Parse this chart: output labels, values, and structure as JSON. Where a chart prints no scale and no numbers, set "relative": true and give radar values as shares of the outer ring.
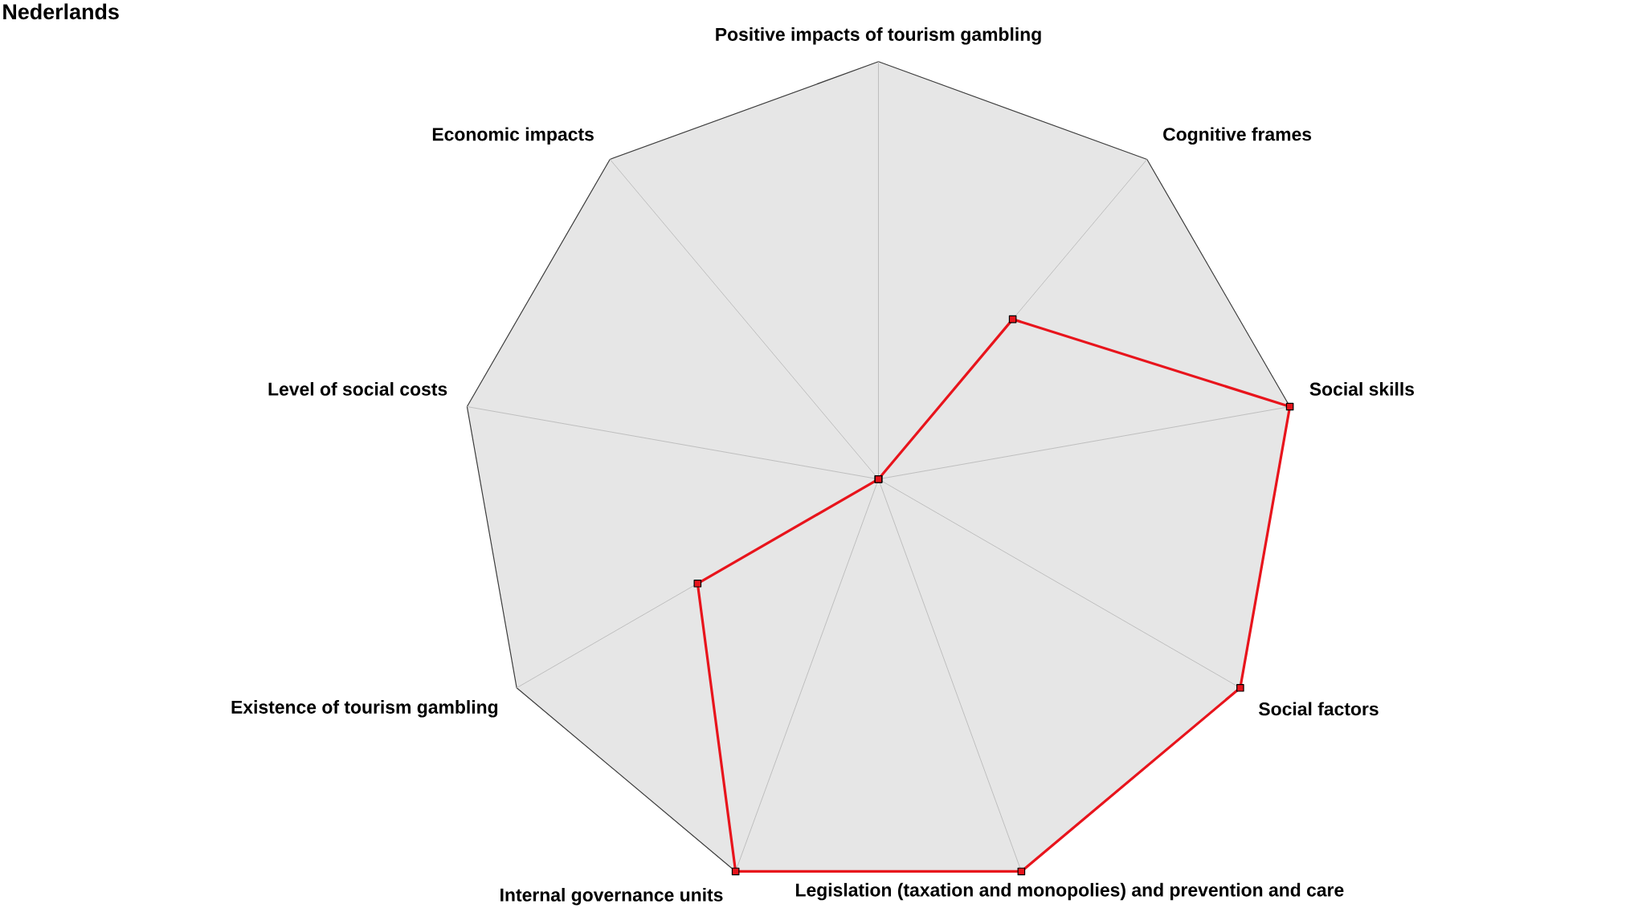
{
  "chart_data": {
    "type": "radar",
    "title": "Nederlands",
    "categories": [
      "Positive impacts of tourism gambling",
      "Cognitive frames",
      "Social skills",
      "Social factors",
      "Legislation (taxation and monopolies) and prevention and care",
      "Internal governance units",
      "Existence of tourism gambling",
      "Level of social costs",
      "Economic impacts"
    ],
    "series": [
      {
        "color": "#e8141c",
        "values": [
          0,
          0.5,
          1,
          1,
          1,
          1,
          0.5,
          0,
          0
        ]
      }
    ],
    "relative": true,
    "grid": true,
    "marker": "square",
    "line_style": "solid"
  }
}
